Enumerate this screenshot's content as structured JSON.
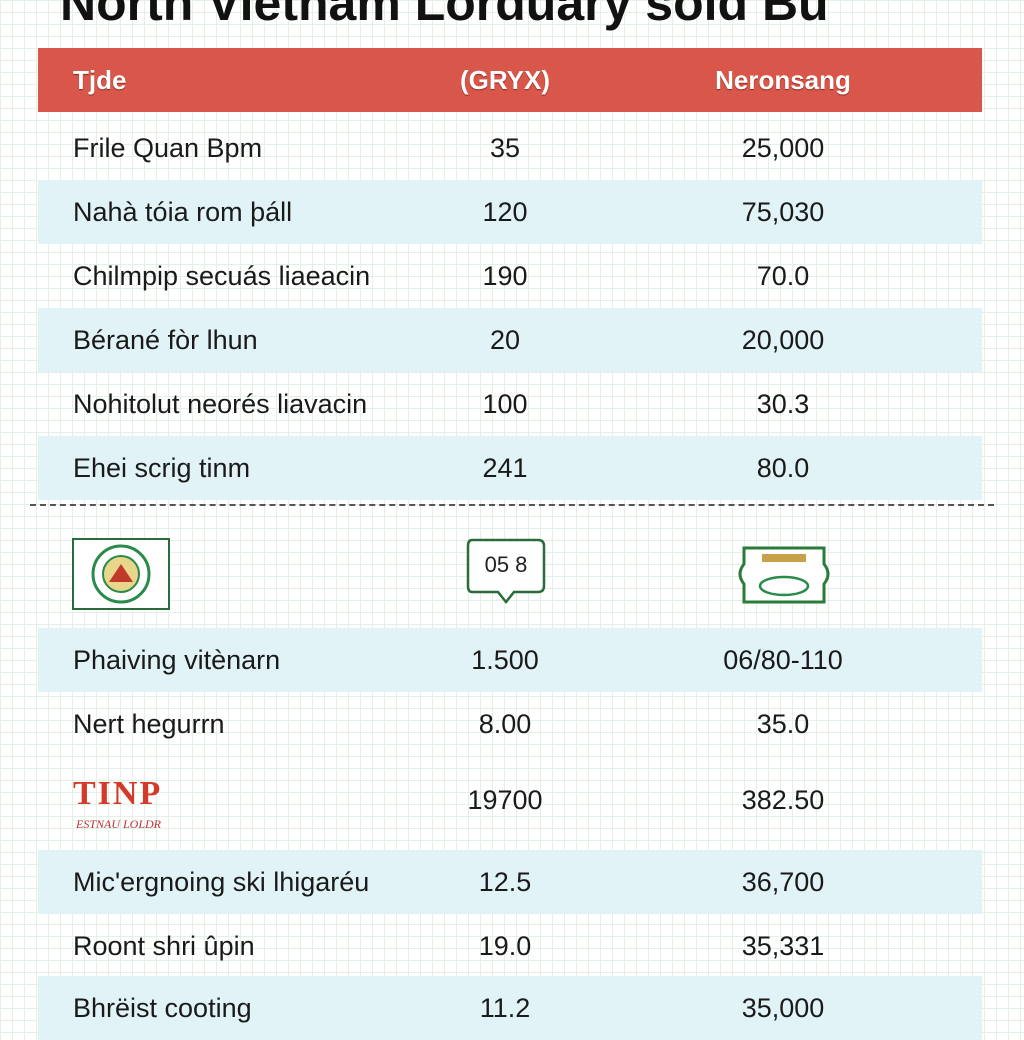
{
  "header": {
    "title": "North Vietnam Lorduary sold Bu"
  },
  "table": {
    "columns": [
      "Tjde",
      "(GRYX)",
      "Neronsang"
    ],
    "rows": [
      {
        "name": "Frile Quan Bpm",
        "gryx": "35",
        "neronsang": "25,000"
      },
      {
        "name": "Nahà tóia rom þáll",
        "gryx": "120",
        "neronsang": "75,030"
      },
      {
        "name": "Chilmpip secuás liaeacin",
        "gryx": "190",
        "neronsang": "70.0"
      },
      {
        "name": "Bérané fòr lhun",
        "gryx": "20",
        "neronsang": "20,000"
      },
      {
        "name": "Nohitolut neorés liavacin",
        "gryx": "100",
        "neronsang": "30.3"
      },
      {
        "name": "Ehei scrig tinm",
        "gryx": "241",
        "neronsang": "80.0"
      }
    ],
    "icon_row": {
      "badge": "05 8"
    },
    "rows_bottom": [
      {
        "name": "Phaiving vitènarn",
        "gryx": "1.500",
        "neronsang": "06/80-110"
      },
      {
        "name": "Nert hegurrn",
        "gryx": "8.00",
        "neronsang": "35.0"
      },
      {
        "logo": "TINP",
        "logo_sub": "ESTNAU LOLDR",
        "gryx": "19700",
        "neronsang": "382.50"
      },
      {
        "name": "Mic'ergnoing ski lhigaréu",
        "gryx": "12.5",
        "neronsang": "36,700"
      },
      {
        "name": "Roont shri ûpin",
        "gryx": "19.0",
        "neronsang": "35,331"
      },
      {
        "name": "Bhrëist cooting",
        "gryx": "11.2",
        "neronsang": "35,000"
      }
    ]
  }
}
